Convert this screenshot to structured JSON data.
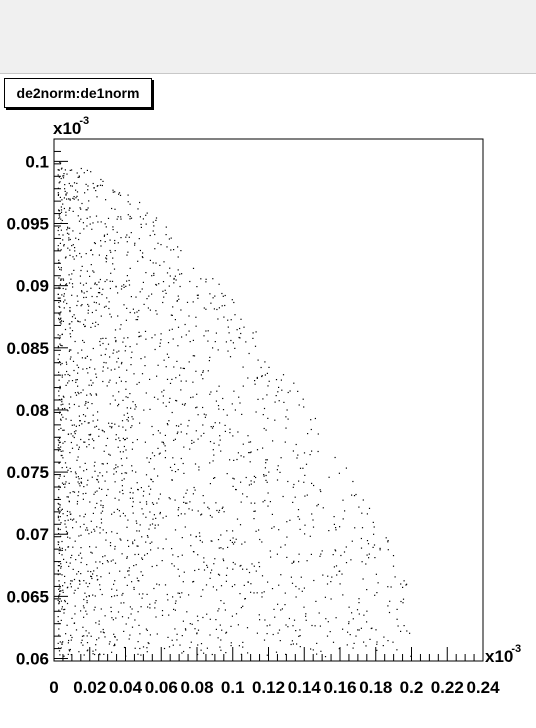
{
  "canvas": {
    "background": "#f0f0f0"
  },
  "chart_data": {
    "type": "scatter",
    "title": "de2norm:de1norm",
    "x_multiplier": "x10",
    "x_multiplier_exp": "-3",
    "y_multiplier": "x10",
    "y_multiplier_exp": "-3",
    "xlim": [
      0,
      0.24
    ],
    "ylim": [
      0.0598,
      0.1018
    ],
    "x_ticks": [
      "0",
      "0.02",
      "0.04",
      "0.06",
      "0.08",
      "0.1",
      "0.12",
      "0.14",
      "0.16",
      "0.18",
      "0.2",
      "0.22",
      "0.24"
    ],
    "y_ticks": [
      "0.06",
      "0.065",
      "0.07",
      "0.075",
      "0.08",
      "0.085",
      "0.09",
      "0.095",
      "0.1"
    ],
    "x_range": [
      0.002,
      0.2
    ],
    "y_range": [
      0.0602,
      0.1
    ],
    "point_count": 2200,
    "density_note": "dense near x 0.005-0.04, thinning toward x 0.2, upper edge curving down to y ~0.066 at x ~0.2",
    "marker_color": "#000000",
    "grid": false
  }
}
